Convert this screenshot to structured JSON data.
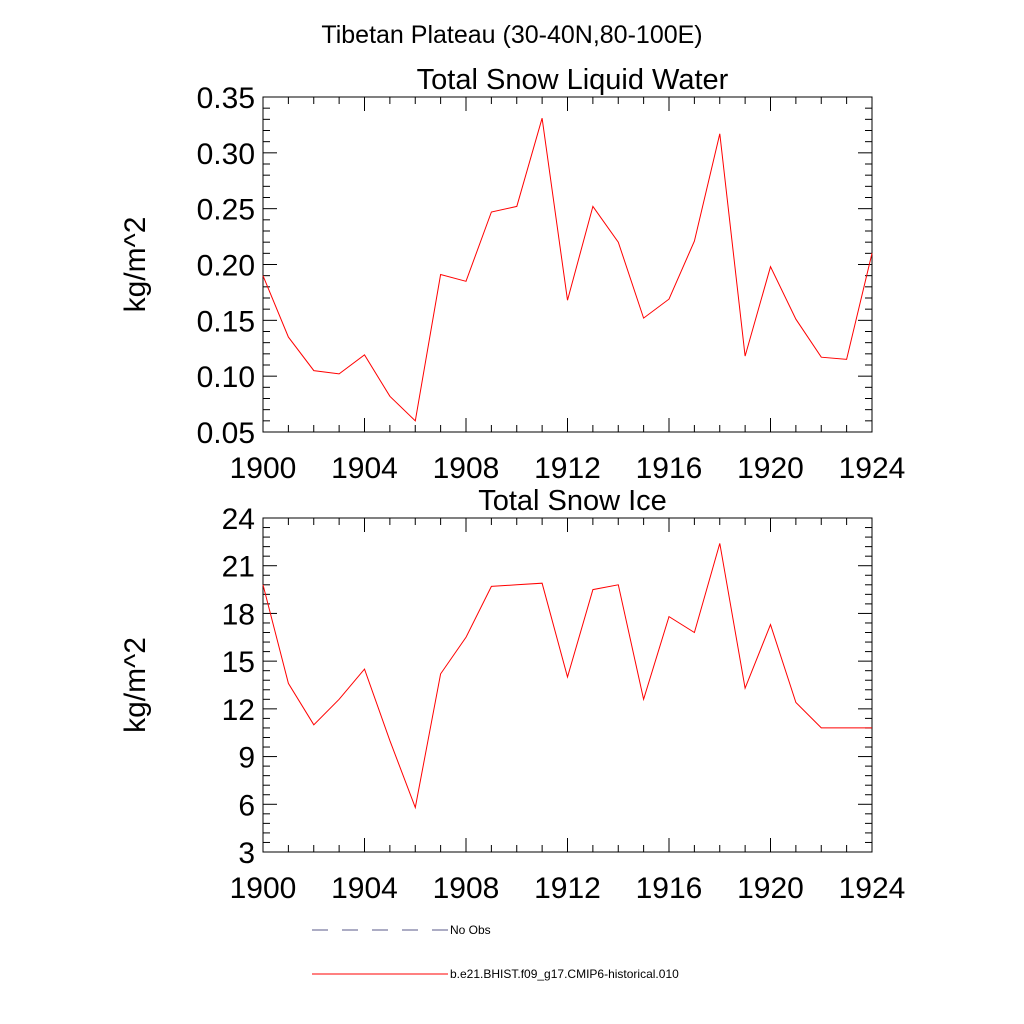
{
  "figure": {
    "title": "Tibetan Plateau (30-40N,80-100E)"
  },
  "colors": {
    "series": "#ff0000",
    "obs": "#5a5a8a",
    "axis": "#000000"
  },
  "chart_data": [
    {
      "type": "line",
      "title": "Total Snow Liquid Water",
      "xlabel": "",
      "ylabel": "kg/m^2",
      "xlim": [
        1900,
        1924
      ],
      "ylim": [
        0.05,
        0.35
      ],
      "xticks": [
        1900,
        1904,
        1908,
        1912,
        1916,
        1920,
        1924
      ],
      "xtick_labels": [
        "1900",
        "1904",
        "1908",
        "1912",
        "1916",
        "1920",
        "1924"
      ],
      "yticks": [
        0.05,
        0.1,
        0.15,
        0.2,
        0.25,
        0.3,
        0.35
      ],
      "ytick_labels": [
        "0.05",
        "0.10",
        "0.15",
        "0.20",
        "0.25",
        "0.30",
        "0.35"
      ],
      "grid": false,
      "x": [
        1900,
        1901,
        1902,
        1903,
        1904,
        1905,
        1906,
        1907,
        1908,
        1909,
        1910,
        1911,
        1912,
        1913,
        1914,
        1915,
        1916,
        1917,
        1918,
        1919,
        1920,
        1921,
        1922,
        1923,
        1924
      ],
      "series": [
        {
          "name": "b.e21.BHIST.f09_g17.CMIP6-historical.010",
          "values": [
            0.19,
            0.135,
            0.105,
            0.102,
            0.119,
            0.082,
            0.06,
            0.191,
            0.185,
            0.247,
            0.252,
            0.331,
            0.168,
            0.252,
            0.22,
            0.152,
            0.169,
            0.221,
            0.317,
            0.118,
            0.198,
            0.151,
            0.117,
            0.115,
            0.21
          ]
        }
      ]
    },
    {
      "type": "line",
      "title": "Total Snow Ice",
      "xlabel": "",
      "ylabel": "kg/m^2",
      "xlim": [
        1900,
        1924
      ],
      "ylim": [
        3,
        24
      ],
      "xticks": [
        1900,
        1904,
        1908,
        1912,
        1916,
        1920,
        1924
      ],
      "xtick_labels": [
        "1900",
        "1904",
        "1908",
        "1912",
        "1916",
        "1920",
        "1924"
      ],
      "yticks": [
        3,
        6,
        9,
        12,
        15,
        18,
        21,
        24
      ],
      "ytick_labels": [
        "3",
        "6",
        "9",
        "12",
        "15",
        "18",
        "21",
        "24"
      ],
      "grid": false,
      "x": [
        1900,
        1901,
        1902,
        1903,
        1904,
        1905,
        1906,
        1907,
        1908,
        1909,
        1910,
        1911,
        1912,
        1913,
        1914,
        1915,
        1916,
        1917,
        1918,
        1919,
        1920,
        1921,
        1922,
        1923,
        1924
      ],
      "series": [
        {
          "name": "b.e21.BHIST.f09_g17.CMIP6-historical.010",
          "values": [
            19.8,
            13.6,
            11.0,
            12.6,
            14.5,
            10.0,
            5.8,
            14.2,
            16.5,
            19.7,
            19.8,
            19.9,
            14.0,
            19.5,
            19.8,
            12.6,
            17.8,
            16.8,
            22.4,
            13.3,
            17.3,
            12.4,
            10.8,
            10.8,
            10.8
          ]
        }
      ]
    }
  ],
  "legend": {
    "placement": "bottom",
    "entries": [
      {
        "label": "No Obs",
        "style": "dashed"
      },
      {
        "label": "b.e21.BHIST.f09_g17.CMIP6-historical.010",
        "style": "solid"
      }
    ]
  }
}
